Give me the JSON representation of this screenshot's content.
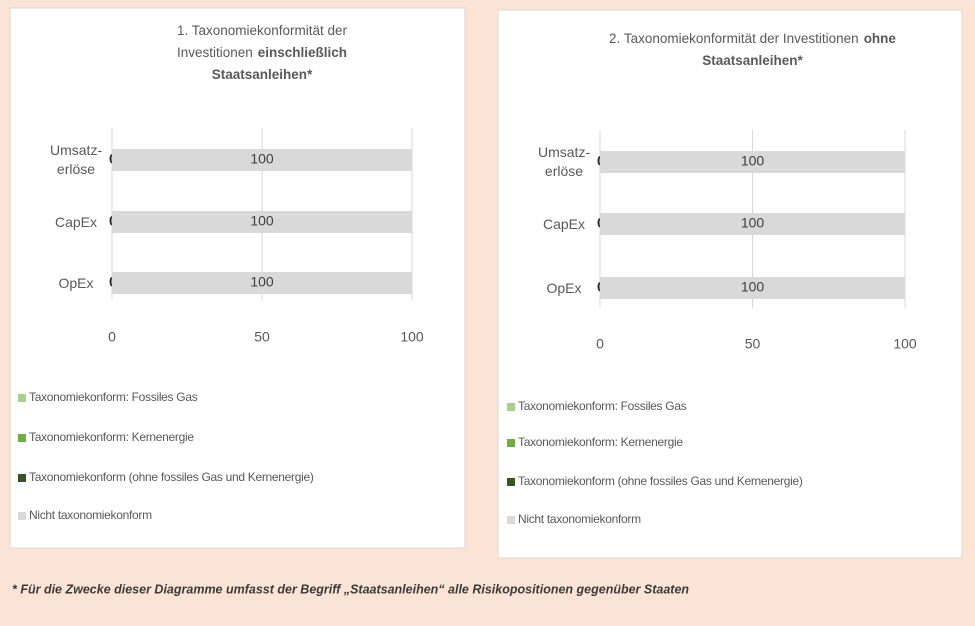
{
  "chart_data": [
    {
      "type": "bar",
      "orientation": "horizontal",
      "stacked": true,
      "title": "1. Taxonomiekonformität der Investitionen",
      "title_emphasis": "einschließlich Staatsanleihen*",
      "categories": [
        "Umsatz-erlöse",
        "CapEx",
        "OpEx"
      ],
      "series": [
        {
          "name": "Taxonomiekonform: Fossiles Gas",
          "color": "#a9d18e",
          "values": [
            0,
            0,
            0
          ]
        },
        {
          "name": "Taxonomiekonform: Kernenergie",
          "color": "#70ad47",
          "values": [
            0,
            0,
            0
          ]
        },
        {
          "name": "Taxonomiekonform (ohne fossiles Gas und Kernenergie)",
          "color": "#375623",
          "values": [
            0,
            0,
            0
          ],
          "data_labels": true
        },
        {
          "name": "Nicht taxonomiekonform",
          "color": "#d9d9d9",
          "values": [
            100,
            100,
            100
          ],
          "data_labels": true
        }
      ],
      "xlim": [
        0,
        100
      ],
      "xticks": [
        0,
        50,
        100
      ],
      "grid": true,
      "legend": "bottom"
    },
    {
      "type": "bar",
      "orientation": "horizontal",
      "stacked": true,
      "title": "2. Taxonomiekonformität der Investitionen",
      "title_emphasis": "ohne Staatsanleihen*",
      "categories": [
        "Umsatz-erlöse",
        "CapEx",
        "OpEx"
      ],
      "series": [
        {
          "name": "Taxonomiekonform: Fossiles Gas",
          "color": "#a9d18e",
          "values": [
            0,
            0,
            0
          ]
        },
        {
          "name": "Taxonomiekonform: Kernenergie",
          "color": "#70ad47",
          "values": [
            0,
            0,
            0
          ]
        },
        {
          "name": "Taxonomiekonform (ohne fossiles Gas und Kernenergie)",
          "color": "#375623",
          "values": [
            0,
            0,
            0
          ],
          "data_labels": true
        },
        {
          "name": "Nicht taxonomiekonform",
          "color": "#d9d9d9",
          "values": [
            100,
            100,
            100
          ],
          "data_labels": true
        }
      ],
      "xlim": [
        0,
        100
      ],
      "xticks": [
        0,
        50,
        100
      ],
      "grid": true,
      "legend": "bottom"
    }
  ],
  "footnote": "* Für die Zwecke dieser Diagramme umfasst der Begriff „Staatsanleihen“ alle Risikopositionen gegenüber Staaten"
}
